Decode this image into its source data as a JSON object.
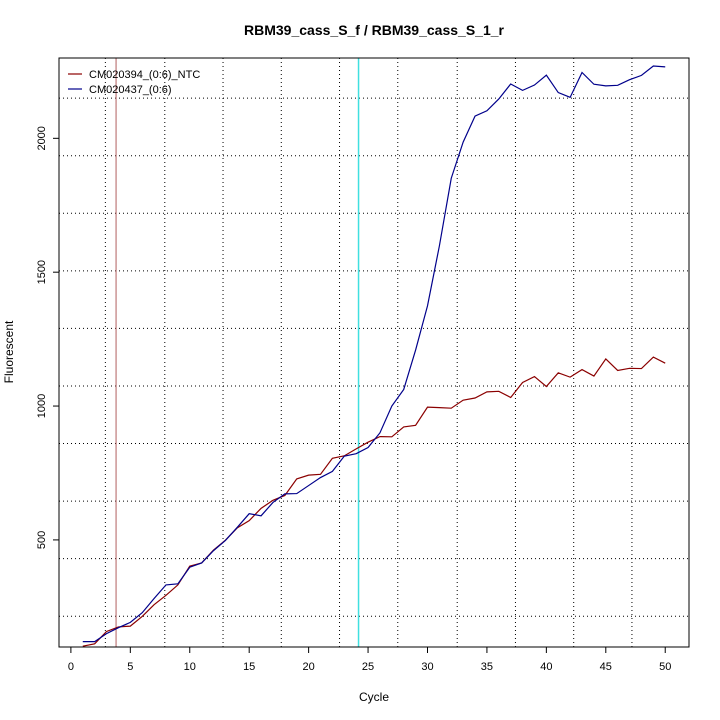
{
  "chart_data": {
    "type": "line",
    "title": "RBM39_cass_S_f / RBM39_cass_S_1_r",
    "xlabel": "Cycle",
    "ylabel": "Fluorescent",
    "xlim": [
      -1,
      52
    ],
    "ylim": [
      100,
      2300
    ],
    "x_ticks": [
      0,
      5,
      10,
      15,
      20,
      25,
      30,
      35,
      40,
      45,
      50
    ],
    "y_ticks": [
      500,
      1000,
      1500,
      2000
    ],
    "grid": true,
    "legend_position": "top-left",
    "x": [
      1,
      2,
      3,
      4,
      5,
      6,
      7,
      8,
      9,
      10,
      11,
      12,
      13,
      14,
      15,
      16,
      17,
      18,
      19,
      20,
      21,
      22,
      23,
      24,
      25,
      26,
      27,
      28,
      29,
      30,
      31,
      32,
      33,
      34,
      35,
      36,
      37,
      38,
      39,
      40,
      41,
      42,
      43,
      44,
      45,
      46,
      47,
      48,
      49,
      50
    ],
    "series": [
      {
        "name": "CM020394_(0:6)_NTC",
        "color": "#8b0000",
        "values": [
          103,
          112,
          158,
          175,
          178,
          214,
          258,
          293,
          332,
          402,
          414,
          462,
          499,
          545,
          572,
          618,
          648,
          666,
          728,
          742,
          745,
          805,
          814,
          840,
          865,
          886,
          885,
          922,
          928,
          996,
          994,
          992,
          1022,
          1030,
          1053,
          1055,
          1032,
          1088,
          1110,
          1073,
          1124,
          1108,
          1136,
          1112,
          1176,
          1133,
          1141,
          1140,
          1183,
          1160
        ]
      },
      {
        "name": "CM020437_(0:6)",
        "color": "#00008b",
        "values": [
          120,
          120,
          150,
          172,
          192,
          228,
          281,
          332,
          336,
          398,
          414,
          460,
          498,
          547,
          598,
          590,
          640,
          672,
          673,
          703,
          733,
          756,
          813,
          822,
          845,
          900,
          1000,
          1062,
          1209,
          1374,
          1598,
          1851,
          1986,
          2083,
          2103,
          2147,
          2203,
          2179,
          2199,
          2236,
          2171,
          2153,
          2246,
          2202,
          2196,
          2198,
          2219,
          2235,
          2270,
          2267
        ]
      }
    ],
    "threshold_cycle": 3.8,
    "threshold_color": "#b26060",
    "cutoff_cycle": 24.2,
    "cutoff_color": "#40e0e0",
    "vertical_dotted_cycles": [
      2.9,
      7.9,
      12.8,
      17.7,
      22.6,
      27.5,
      32.5,
      37.4,
      42.3,
      47.2
    ],
    "horizontal_dotted_values": [
      215,
      430,
      645,
      860,
      1075,
      1290,
      1505,
      1720,
      1935,
      2150
    ]
  }
}
